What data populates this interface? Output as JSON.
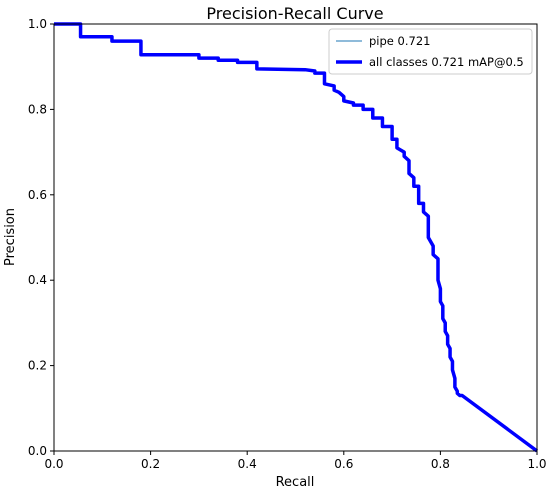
{
  "chart_data": {
    "type": "line",
    "title": "Precision-Recall Curve",
    "xlabel": "Recall",
    "ylabel": "Precision",
    "xlim": [
      0,
      1
    ],
    "ylim": [
      0,
      1
    ],
    "grid": false,
    "legend_placement": "top-right",
    "x_ticks": [
      "0.0",
      "0.2",
      "0.4",
      "0.6",
      "0.8",
      "1.0"
    ],
    "y_ticks": [
      "0.0",
      "0.2",
      "0.4",
      "0.6",
      "0.8",
      "1.0"
    ],
    "series": [
      {
        "name": "pipe 0.721",
        "color": "#1f77b4",
        "style": "thin",
        "x": [
          0.0,
          0.055,
          0.055,
          0.12,
          0.12,
          0.18,
          0.18,
          0.3,
          0.3,
          0.34,
          0.34,
          0.38,
          0.38,
          0.42,
          0.42,
          0.52,
          0.54,
          0.54,
          0.56,
          0.56,
          0.58,
          0.58,
          0.59,
          0.6,
          0.6,
          0.62,
          0.62,
          0.64,
          0.64,
          0.66,
          0.66,
          0.68,
          0.68,
          0.7,
          0.7,
          0.71,
          0.71,
          0.725,
          0.725,
          0.735,
          0.735,
          0.745,
          0.745,
          0.755,
          0.755,
          0.765,
          0.765,
          0.775,
          0.775,
          0.785,
          0.785,
          0.795,
          0.795,
          0.8,
          0.8,
          0.805,
          0.805,
          0.81,
          0.81,
          0.815,
          0.815,
          0.82,
          0.82,
          0.825,
          0.825,
          0.83,
          0.83,
          0.835,
          0.835,
          0.84,
          0.84,
          0.845,
          1.0
        ],
        "y": [
          1.0,
          1.0,
          0.97,
          0.97,
          0.96,
          0.96,
          0.928,
          0.928,
          0.92,
          0.92,
          0.915,
          0.915,
          0.91,
          0.91,
          0.895,
          0.893,
          0.89,
          0.885,
          0.885,
          0.86,
          0.855,
          0.845,
          0.84,
          0.83,
          0.82,
          0.815,
          0.81,
          0.81,
          0.8,
          0.8,
          0.78,
          0.78,
          0.76,
          0.76,
          0.73,
          0.73,
          0.71,
          0.7,
          0.69,
          0.68,
          0.65,
          0.64,
          0.62,
          0.62,
          0.58,
          0.58,
          0.56,
          0.55,
          0.5,
          0.48,
          0.46,
          0.45,
          0.4,
          0.38,
          0.35,
          0.34,
          0.31,
          0.3,
          0.28,
          0.27,
          0.25,
          0.24,
          0.22,
          0.21,
          0.19,
          0.17,
          0.15,
          0.14,
          0.135,
          0.13,
          0.13,
          0.13,
          0.0
        ]
      },
      {
        "name": "all classes 0.721 mAP@0.5",
        "color": "#0000ff",
        "style": "thick",
        "x": [
          0.0,
          0.055,
          0.055,
          0.12,
          0.12,
          0.18,
          0.18,
          0.3,
          0.3,
          0.34,
          0.34,
          0.38,
          0.38,
          0.42,
          0.42,
          0.52,
          0.54,
          0.54,
          0.56,
          0.56,
          0.58,
          0.58,
          0.59,
          0.6,
          0.6,
          0.62,
          0.62,
          0.64,
          0.64,
          0.66,
          0.66,
          0.68,
          0.68,
          0.7,
          0.7,
          0.71,
          0.71,
          0.725,
          0.725,
          0.735,
          0.735,
          0.745,
          0.745,
          0.755,
          0.755,
          0.765,
          0.765,
          0.775,
          0.775,
          0.785,
          0.785,
          0.795,
          0.795,
          0.8,
          0.8,
          0.805,
          0.805,
          0.81,
          0.81,
          0.815,
          0.815,
          0.82,
          0.82,
          0.825,
          0.825,
          0.83,
          0.83,
          0.835,
          0.835,
          0.84,
          0.84,
          0.845,
          1.0
        ],
        "y": [
          1.0,
          1.0,
          0.97,
          0.97,
          0.96,
          0.96,
          0.928,
          0.928,
          0.92,
          0.92,
          0.915,
          0.915,
          0.91,
          0.91,
          0.895,
          0.893,
          0.89,
          0.885,
          0.885,
          0.86,
          0.855,
          0.845,
          0.84,
          0.83,
          0.82,
          0.815,
          0.81,
          0.81,
          0.8,
          0.8,
          0.78,
          0.78,
          0.76,
          0.76,
          0.73,
          0.73,
          0.71,
          0.7,
          0.69,
          0.68,
          0.65,
          0.64,
          0.62,
          0.62,
          0.58,
          0.58,
          0.56,
          0.55,
          0.5,
          0.48,
          0.46,
          0.45,
          0.4,
          0.38,
          0.35,
          0.34,
          0.31,
          0.3,
          0.28,
          0.27,
          0.25,
          0.24,
          0.22,
          0.21,
          0.19,
          0.17,
          0.15,
          0.14,
          0.135,
          0.13,
          0.13,
          0.13,
          0.0
        ]
      }
    ]
  }
}
